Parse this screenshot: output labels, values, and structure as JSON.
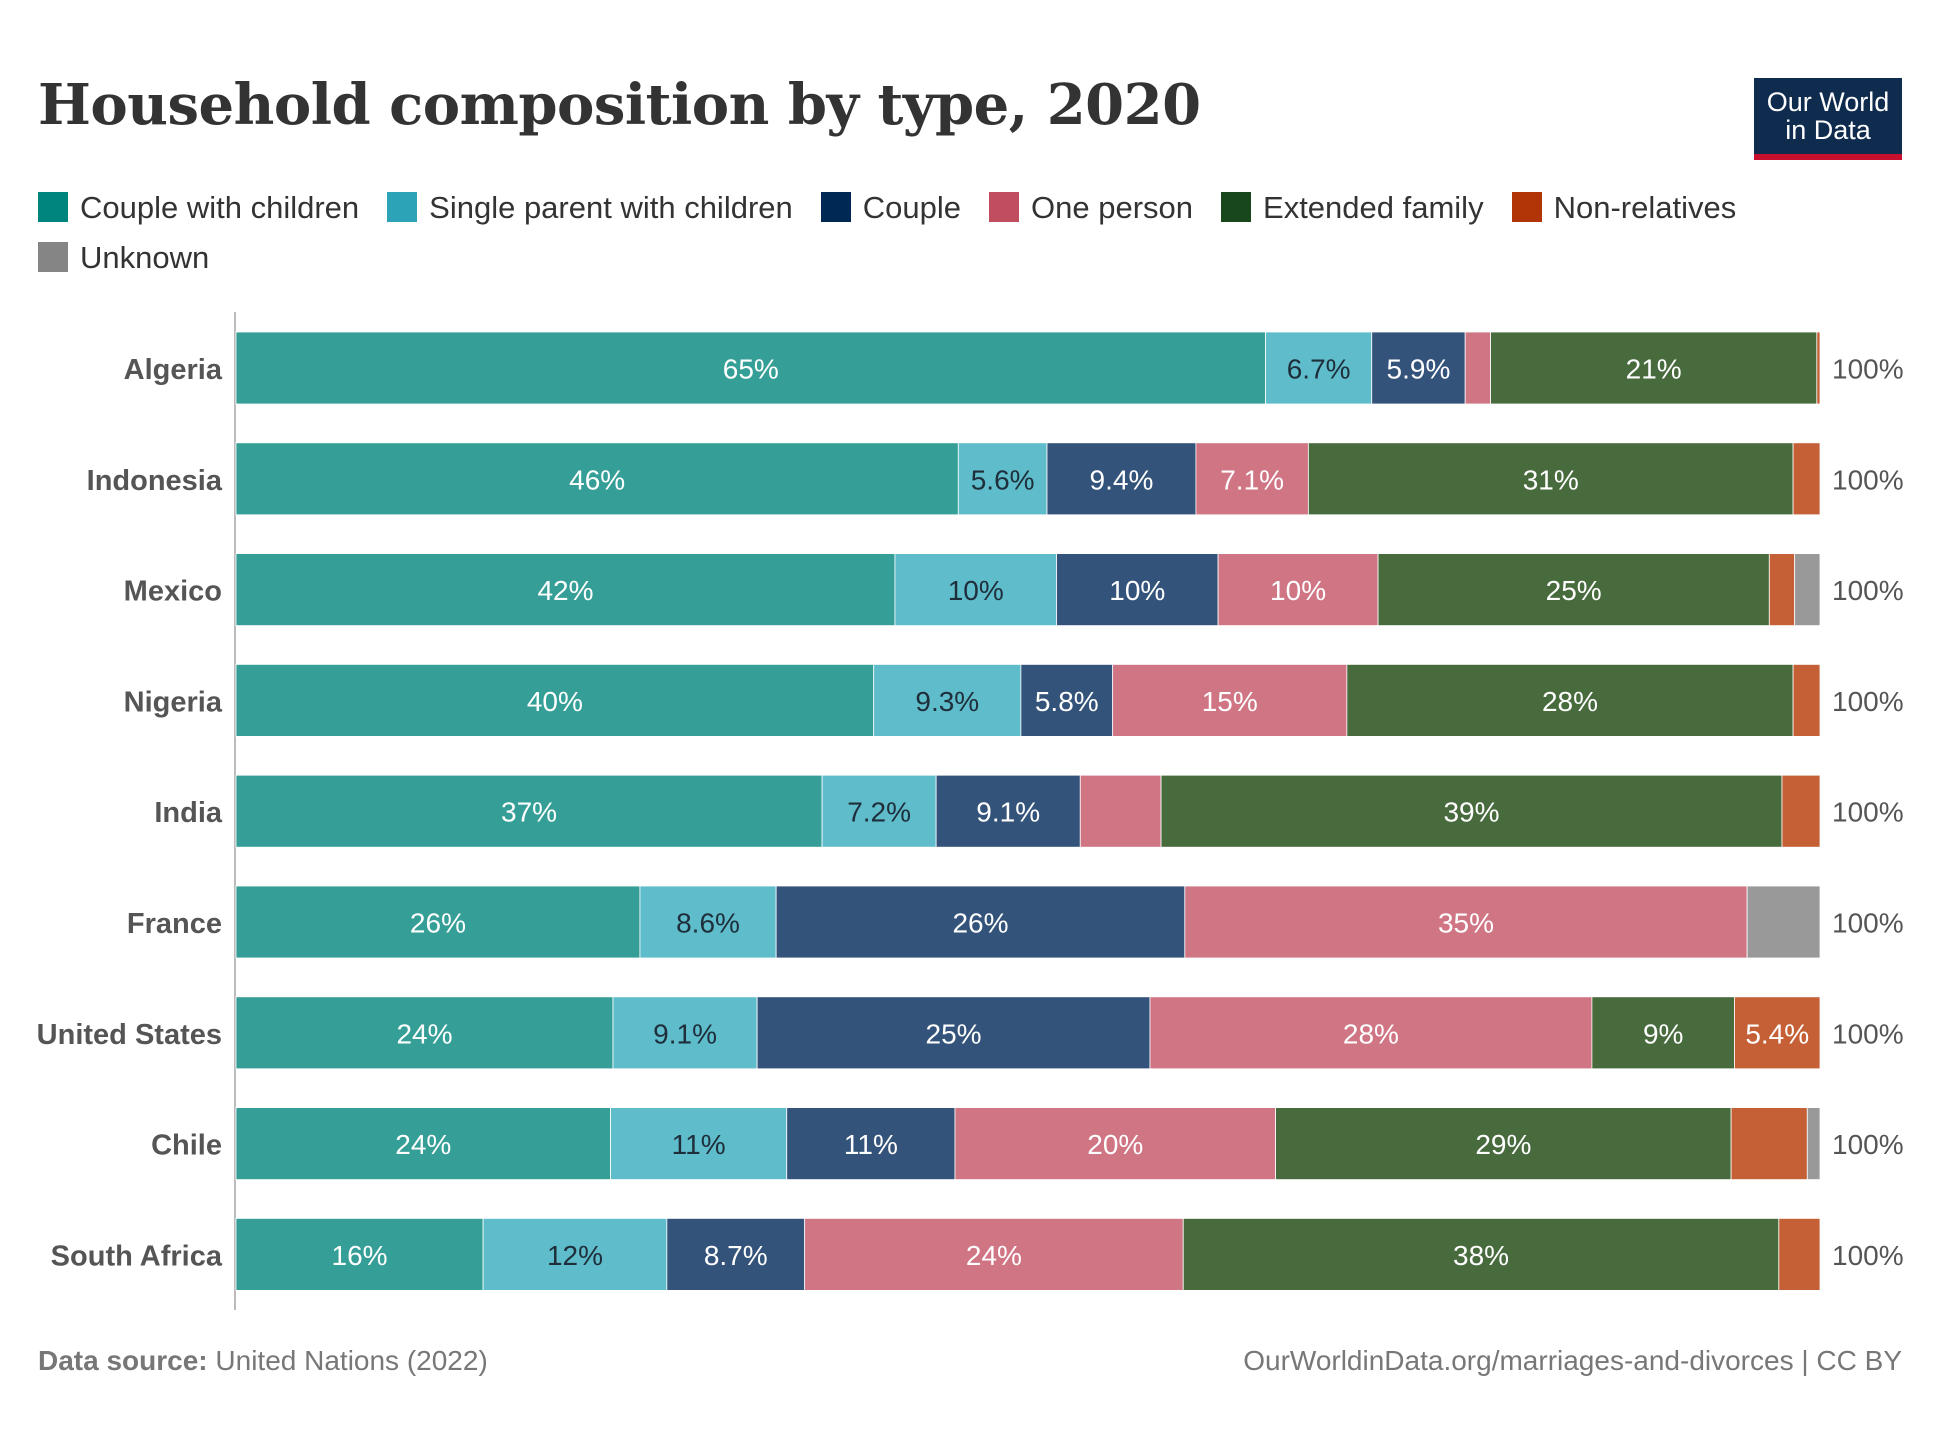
{
  "title": "Household composition by type, 2020",
  "logo": {
    "line1": "Our World",
    "line2": "in Data"
  },
  "footer": {
    "source_label": "Data source:",
    "source_value": "United Nations (2022)",
    "url": "OurWorldinData.org/marriages-and-divorces",
    "license": "| CC BY"
  },
  "chart_data": {
    "type": "bar",
    "orientation": "horizontal",
    "stacked": true,
    "title": "Household composition by type, 2020",
    "xlim": [
      0,
      100
    ],
    "categories": [
      "Algeria",
      "Indonesia",
      "Mexico",
      "Nigeria",
      "India",
      "France",
      "United States",
      "Chile",
      "South Africa"
    ],
    "totals": [
      "100%",
      "100%",
      "100%",
      "100%",
      "100%",
      "100%",
      "100%",
      "100%",
      "100%"
    ],
    "series": [
      {
        "name": "Couple with children",
        "legend_color": "#00847e",
        "color": "#359f97",
        "values": [
          65,
          45.6,
          41.6,
          40.3,
          37,
          25.5,
          23.8,
          23.6,
          15.6
        ],
        "labels": [
          "65%",
          "46%",
          "42%",
          "40%",
          "37%",
          "26%",
          "24%",
          "24%",
          "16%"
        ]
      },
      {
        "name": "Single parent with children",
        "legend_color": "#2ca3b7",
        "color": "#5fbccb",
        "values": [
          6.7,
          5.6,
          10.2,
          9.3,
          7.2,
          8.6,
          9.1,
          11.1,
          11.6
        ],
        "labels": [
          "6.7%",
          "5.6%",
          "10%",
          "9.3%",
          "7.2%",
          "8.6%",
          "9.1%",
          "11%",
          "12%"
        ]
      },
      {
        "name": "Couple",
        "legend_color": "#002855",
        "color": "#34537a",
        "values": [
          5.9,
          9.4,
          10.2,
          5.8,
          9.1,
          25.8,
          24.8,
          10.6,
          8.7
        ],
        "labels": [
          "5.9%",
          "9.4%",
          "10%",
          "5.8%",
          "9.1%",
          "26%",
          "25%",
          "11%",
          "8.7%"
        ]
      },
      {
        "name": "One person",
        "legend_color": "#c14e60",
        "color": "#cf7584",
        "values": [
          1.6,
          7.1,
          10.1,
          14.8,
          5.1,
          35.5,
          27.9,
          20.2,
          23.9
        ],
        "labels": [
          "",
          "7.1%",
          "10%",
          "15%",
          "",
          "35%",
          "28%",
          "20%",
          "24%"
        ]
      },
      {
        "name": "Extended family",
        "legend_color": "#17471a",
        "color": "#486b3e",
        "values": [
          20.6,
          30.6,
          24.7,
          28.2,
          39.2,
          0,
          9,
          28.7,
          37.6
        ],
        "labels": [
          "21%",
          "31%",
          "25%",
          "28%",
          "39%",
          "",
          "9%",
          "29%",
          "38%"
        ]
      },
      {
        "name": "Non-relatives",
        "legend_color": "#b13507",
        "color": "#c56036",
        "values": [
          0.2,
          1.7,
          1.6,
          1.7,
          2.4,
          0,
          5.4,
          4.8,
          2.6
        ],
        "labels": [
          "",
          "",
          "",
          "",
          "",
          "",
          "5.4%",
          "",
          ""
        ]
      },
      {
        "name": "Unknown",
        "legend_color": "#858585",
        "color": "#999999",
        "values": [
          0,
          0,
          1.6,
          0,
          0,
          4.6,
          0,
          0.8,
          0
        ],
        "labels": [
          "",
          "",
          "",
          "",
          "",
          "",
          "",
          "",
          ""
        ]
      }
    ]
  }
}
